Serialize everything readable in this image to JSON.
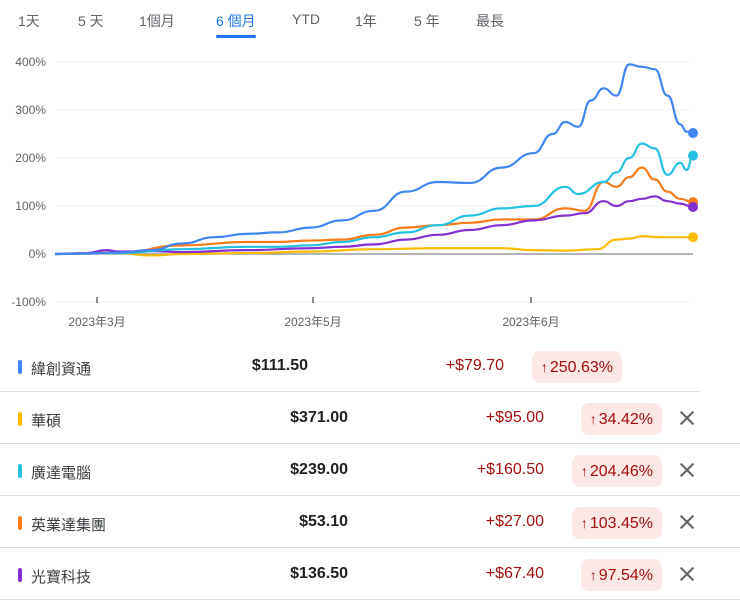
{
  "tabs": [
    {
      "label": "1天",
      "active": false
    },
    {
      "label": "5 天",
      "active": false
    },
    {
      "label": "1個月",
      "active": false
    },
    {
      "label": "6 個月",
      "active": true
    },
    {
      "label": "YTD",
      "active": false
    },
    {
      "label": "1年",
      "active": false
    },
    {
      "label": "5 年",
      "active": false
    },
    {
      "label": "最長",
      "active": false
    }
  ],
  "chart_data": {
    "type": "line",
    "title": "",
    "xlabel": "",
    "ylabel": "",
    "ylim": [
      -100,
      400
    ],
    "y_ticks": [
      "400%",
      "300%",
      "200%",
      "100%",
      "0%",
      "-100%"
    ],
    "x_ticks": [
      "2023年3月",
      "2023年5月",
      "2023年6月"
    ],
    "grid": true,
    "legend_position": "below (table)",
    "series": [
      {
        "name": "緯創資通",
        "color": "#4285f4",
        "final_pct": 250.63,
        "points": [
          [
            0,
            0
          ],
          [
            0.05,
            1
          ],
          [
            0.1,
            3
          ],
          [
            0.15,
            8
          ],
          [
            0.2,
            22
          ],
          [
            0.25,
            35
          ],
          [
            0.3,
            42
          ],
          [
            0.35,
            45
          ],
          [
            0.4,
            55
          ],
          [
            0.45,
            70
          ],
          [
            0.5,
            90
          ],
          [
            0.55,
            130
          ],
          [
            0.6,
            150
          ],
          [
            0.65,
            148
          ],
          [
            0.7,
            180
          ],
          [
            0.75,
            210
          ],
          [
            0.78,
            250
          ],
          [
            0.8,
            275
          ],
          [
            0.82,
            265
          ],
          [
            0.84,
            320
          ],
          [
            0.86,
            345
          ],
          [
            0.88,
            330
          ],
          [
            0.9,
            395
          ],
          [
            0.92,
            390
          ],
          [
            0.94,
            385
          ],
          [
            0.96,
            330
          ],
          [
            0.98,
            270
          ],
          [
            0.99,
            255
          ],
          [
            1.0,
            252
          ]
        ]
      },
      {
        "name": "華碩",
        "color": "#fbbc04",
        "final_pct": 34.42,
        "points": [
          [
            0,
            0
          ],
          [
            0.1,
            2
          ],
          [
            0.15,
            -3
          ],
          [
            0.2,
            0
          ],
          [
            0.3,
            2
          ],
          [
            0.4,
            5
          ],
          [
            0.5,
            10
          ],
          [
            0.6,
            12
          ],
          [
            0.7,
            12
          ],
          [
            0.75,
            8
          ],
          [
            0.8,
            7
          ],
          [
            0.85,
            10
          ],
          [
            0.88,
            30
          ],
          [
            0.9,
            32
          ],
          [
            0.92,
            37
          ],
          [
            0.95,
            35
          ],
          [
            1.0,
            35
          ]
        ]
      },
      {
        "name": "廣達電腦",
        "color": "#24c1e0",
        "final_pct": 204.46,
        "points": [
          [
            0,
            0
          ],
          [
            0.1,
            2
          ],
          [
            0.2,
            10
          ],
          [
            0.3,
            15
          ],
          [
            0.35,
            15
          ],
          [
            0.4,
            18
          ],
          [
            0.45,
            25
          ],
          [
            0.5,
            35
          ],
          [
            0.55,
            45
          ],
          [
            0.6,
            60
          ],
          [
            0.65,
            80
          ],
          [
            0.7,
            95
          ],
          [
            0.75,
            100
          ],
          [
            0.8,
            140
          ],
          [
            0.82,
            125
          ],
          [
            0.86,
            150
          ],
          [
            0.88,
            170
          ],
          [
            0.9,
            200
          ],
          [
            0.92,
            230
          ],
          [
            0.94,
            220
          ],
          [
            0.96,
            165
          ],
          [
            0.98,
            190
          ],
          [
            0.99,
            175
          ],
          [
            1.0,
            205
          ]
        ]
      },
      {
        "name": "英業達集團",
        "color": "#fa7b17",
        "final_pct": 103.45,
        "points": [
          [
            0,
            0
          ],
          [
            0.1,
            3
          ],
          [
            0.2,
            18
          ],
          [
            0.3,
            25
          ],
          [
            0.35,
            25
          ],
          [
            0.4,
            28
          ],
          [
            0.45,
            30
          ],
          [
            0.5,
            40
          ],
          [
            0.55,
            55
          ],
          [
            0.6,
            60
          ],
          [
            0.65,
            65
          ],
          [
            0.7,
            72
          ],
          [
            0.75,
            72
          ],
          [
            0.8,
            95
          ],
          [
            0.83,
            90
          ],
          [
            0.86,
            150
          ],
          [
            0.88,
            140
          ],
          [
            0.9,
            160
          ],
          [
            0.92,
            180
          ],
          [
            0.94,
            155
          ],
          [
            0.96,
            130
          ],
          [
            0.98,
            115
          ],
          [
            1.0,
            108
          ]
        ]
      },
      {
        "name": "光寶科技",
        "color": "#8430ce",
        "final_pct": 97.54,
        "points": [
          [
            0,
            0
          ],
          [
            0.05,
            2
          ],
          [
            0.08,
            8
          ],
          [
            0.1,
            5
          ],
          [
            0.15,
            6
          ],
          [
            0.2,
            4
          ],
          [
            0.3,
            8
          ],
          [
            0.4,
            12
          ],
          [
            0.45,
            15
          ],
          [
            0.5,
            20
          ],
          [
            0.55,
            30
          ],
          [
            0.6,
            40
          ],
          [
            0.65,
            50
          ],
          [
            0.7,
            60
          ],
          [
            0.75,
            70
          ],
          [
            0.8,
            80
          ],
          [
            0.83,
            85
          ],
          [
            0.86,
            110
          ],
          [
            0.88,
            100
          ],
          [
            0.9,
            110
          ],
          [
            0.92,
            115
          ],
          [
            0.94,
            120
          ],
          [
            0.96,
            110
          ],
          [
            0.98,
            105
          ],
          [
            1.0,
            98
          ]
        ]
      }
    ]
  },
  "stocks": [
    {
      "name": "緯創資通",
      "color": "#4285f4",
      "price": "$111.50",
      "change": "+$79.70",
      "pct": "250.63%",
      "arrow": "↑",
      "removable": false
    },
    {
      "name": "華碩",
      "color": "#fbbc04",
      "price": "$371.00",
      "change": "+$95.00",
      "pct": "34.42%",
      "arrow": "↑",
      "removable": true
    },
    {
      "name": "廣達電腦",
      "color": "#24c1e0",
      "price": "$239.00",
      "change": "+$160.50",
      "pct": "204.46%",
      "arrow": "↑",
      "removable": true
    },
    {
      "name": "英業達集團",
      "color": "#fa7b17",
      "price": "$53.10",
      "change": "+$27.00",
      "pct": "103.45%",
      "arrow": "↑",
      "removable": true
    },
    {
      "name": "光寶科技",
      "color": "#8430ce",
      "price": "$136.50",
      "change": "+$67.40",
      "pct": "97.54%",
      "arrow": "↑",
      "removable": true
    }
  ]
}
